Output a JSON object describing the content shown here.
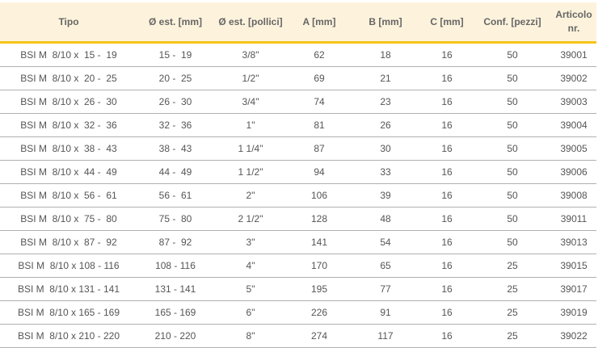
{
  "columns": [
    "Tipo",
    "Ø est. [mm]",
    "Ø est. [pollici]",
    "A [mm]",
    "B [mm]",
    "C [mm]",
    "Conf. [pezzi]",
    "Articolo nr."
  ],
  "rows": [
    [
      "BSI M  8/10 x  15 -  19",
      "15 -  19",
      "3/8\"",
      "62",
      "18",
      "16",
      "50",
      "39001"
    ],
    [
      "BSI M  8/10 x  20 -  25",
      "20 -  25",
      "1/2\"",
      "69",
      "21",
      "16",
      "50",
      "39002"
    ],
    [
      "BSI M  8/10 x  26 -  30",
      "26 -  30",
      "3/4\"",
      "74",
      "23",
      "16",
      "50",
      "39003"
    ],
    [
      "BSI M  8/10 x  32 -  36",
      "32 -  36",
      "1\"",
      "81",
      "26",
      "16",
      "50",
      "39004"
    ],
    [
      "BSI M  8/10 x  38 -  43",
      "38 -  43",
      "1 1/4\"",
      "87",
      "30",
      "16",
      "50",
      "39005"
    ],
    [
      "BSI M  8/10 x  44 -  49",
      "44 -  49",
      "1 1/2\"",
      "94",
      "33",
      "16",
      "50",
      "39006"
    ],
    [
      "BSI M  8/10 x  56 -  61",
      "56 -  61",
      "2\"",
      "106",
      "39",
      "16",
      "50",
      "39008"
    ],
    [
      "BSI M  8/10 x  75 -  80",
      "75 -  80",
      "2 1/2\"",
      "128",
      "48",
      "16",
      "50",
      "39011"
    ],
    [
      "BSI M  8/10 x  87 -  92",
      "87 -  92",
      "3\"",
      "141",
      "54",
      "16",
      "50",
      "39013"
    ],
    [
      "BSI M  8/10 x 108 - 116",
      "108 - 116",
      "4\"",
      "170",
      "65",
      "16",
      "25",
      "39015"
    ],
    [
      "BSI M  8/10 x 131 - 141",
      "131 - 141",
      "5\"",
      "195",
      "77",
      "16",
      "25",
      "39017"
    ],
    [
      "BSI M  8/10 x 165 - 169",
      "165 - 169",
      "6\"",
      "226",
      "91",
      "16",
      "25",
      "39019"
    ],
    [
      "BSI M  8/10 x 210 - 220",
      "210 - 220",
      "8\"",
      "274",
      "117",
      "16",
      "25",
      "39022"
    ]
  ],
  "colors": {
    "header_bg": "#fdf3dc",
    "accent": "#f5c518"
  }
}
